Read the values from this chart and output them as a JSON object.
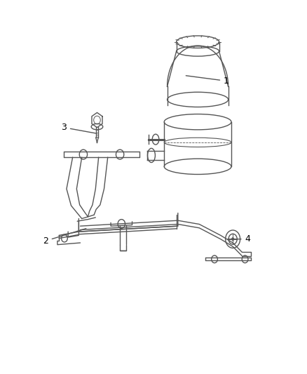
{
  "background_color": "#ffffff",
  "line_color": "#555555",
  "label_color": "#000000",
  "fig_width": 4.38,
  "fig_height": 5.33,
  "dpi": 100
}
